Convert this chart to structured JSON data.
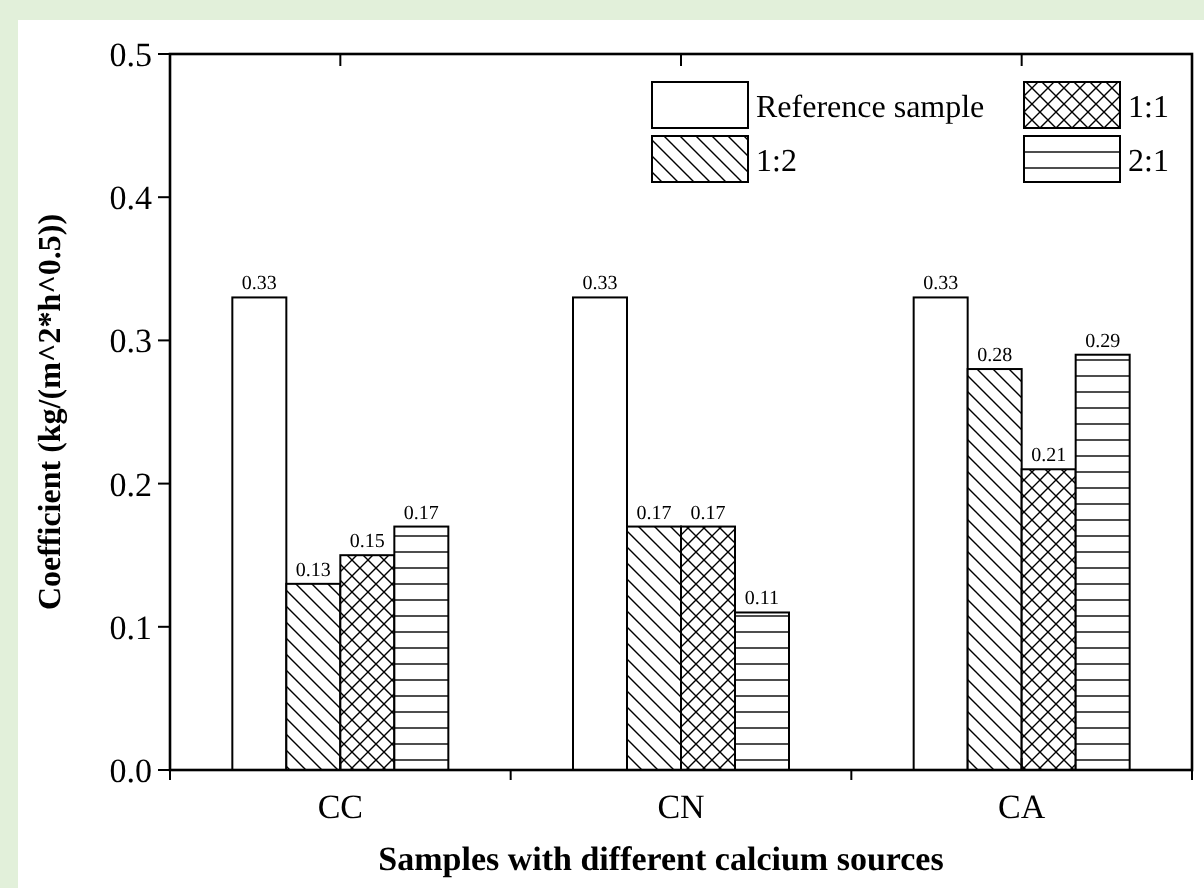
{
  "chart_data": {
    "type": "bar",
    "xlabel": "Samples with different calcium sources",
    "ylabel": "Coefficient (kg/(m^2*h^0.5))",
    "categories": [
      "CC",
      "CN",
      "CA"
    ],
    "series": [
      {
        "name": "Reference sample",
        "color": "#ffffff",
        "values": [
          0.33,
          0.33,
          0.33
        ]
      },
      {
        "name": "1:2",
        "color": "#000000",
        "values": [
          0.13,
          0.17,
          0.28
        ]
      },
      {
        "name": "1:1",
        "color": "#000000",
        "values": [
          0.15,
          0.17,
          0.21
        ]
      },
      {
        "name": "2:1",
        "color": "#000000",
        "values": [
          0.17,
          0.11,
          0.29
        ]
      }
    ],
    "ylim": [
      0,
      0.5
    ],
    "yticks": [
      {
        "value": 0,
        "label": "0.0"
      },
      {
        "value": 0.1,
        "label": "0.1"
      },
      {
        "value": 0.2,
        "label": "0.2"
      },
      {
        "value": 0.3,
        "label": "0.3"
      },
      {
        "value": 0.4,
        "label": "0.4"
      },
      {
        "value": 0.5,
        "label": "0.5"
      }
    ],
    "data_labels": true,
    "legend": "top right",
    "grid": false
  }
}
